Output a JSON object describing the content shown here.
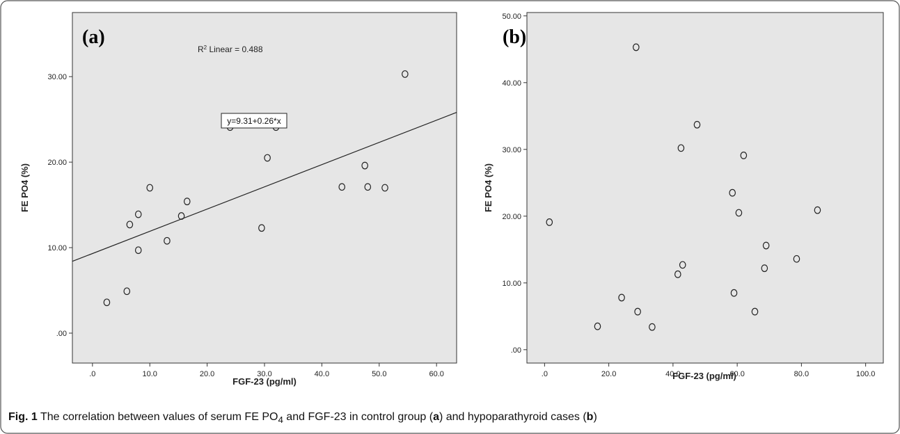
{
  "chart_data": [
    {
      "type": "scatter",
      "panel_label": "(a)",
      "xlabel": "FGF-23 (pg/ml)",
      "ylabel": "FE PO4 (%)",
      "xlim": [
        -3.5,
        63.5
      ],
      "ylim": [
        -3.5,
        37.5
      ],
      "x_ticks": [
        ".0",
        "10.0",
        "20.0",
        "30.0",
        "40.0",
        "50.0",
        "60.0"
      ],
      "y_ticks": [
        ".00",
        "10.00",
        "20.00",
        "30.00"
      ],
      "points": [
        {
          "x": 2.5,
          "y": 3.6
        },
        {
          "x": 6.0,
          "y": 4.9
        },
        {
          "x": 6.5,
          "y": 12.7
        },
        {
          "x": 8.0,
          "y": 9.7
        },
        {
          "x": 8.0,
          "y": 13.9
        },
        {
          "x": 10.0,
          "y": 17.0
        },
        {
          "x": 13.0,
          "y": 10.8
        },
        {
          "x": 15.5,
          "y": 13.7
        },
        {
          "x": 16.5,
          "y": 15.4
        },
        {
          "x": 24.0,
          "y": 24.1
        },
        {
          "x": 29.5,
          "y": 12.3
        },
        {
          "x": 30.5,
          "y": 20.5
        },
        {
          "x": 32.0,
          "y": 24.1
        },
        {
          "x": 43.5,
          "y": 17.1
        },
        {
          "x": 47.5,
          "y": 19.6
        },
        {
          "x": 48.0,
          "y": 17.1
        },
        {
          "x": 51.0,
          "y": 17.0
        },
        {
          "x": 54.5,
          "y": 30.3
        }
      ],
      "fit_line": {
        "intercept": 9.31,
        "slope": 0.26
      },
      "fit_label": "y=9.31+0.26*x",
      "r2_label": "R",
      "r2_sup": "2",
      "r2_text": " Linear = 0.488"
    },
    {
      "type": "scatter",
      "panel_label": "(b)",
      "xlabel": "FGF-23 (pg/ml)",
      "ylabel": "FE PO4 (%)",
      "xlim": [
        -5.5,
        105.5
      ],
      "ylim": [
        -2.0,
        50.5
      ],
      "x_ticks": [
        ".0",
        "20.0",
        "40.0",
        "60.0",
        "80.0",
        "100.0"
      ],
      "y_ticks": [
        ".00",
        "10.00",
        "20.00",
        "30.00",
        "40.00",
        "50.00"
      ],
      "points": [
        {
          "x": 1.5,
          "y": 19.1
        },
        {
          "x": 16.5,
          "y": 3.5
        },
        {
          "x": 24.0,
          "y": 7.8
        },
        {
          "x": 28.5,
          "y": 45.3
        },
        {
          "x": 29.0,
          "y": 5.7
        },
        {
          "x": 33.5,
          "y": 3.4
        },
        {
          "x": 41.5,
          "y": 11.3
        },
        {
          "x": 42.5,
          "y": 30.2
        },
        {
          "x": 43.0,
          "y": 12.7
        },
        {
          "x": 47.5,
          "y": 33.7
        },
        {
          "x": 58.5,
          "y": 23.5
        },
        {
          "x": 59.0,
          "y": 8.5
        },
        {
          "x": 60.5,
          "y": 20.5
        },
        {
          "x": 62.0,
          "y": 29.1
        },
        {
          "x": 65.5,
          "y": 5.7
        },
        {
          "x": 68.5,
          "y": 12.2
        },
        {
          "x": 69.0,
          "y": 15.6
        },
        {
          "x": 78.5,
          "y": 13.6
        },
        {
          "x": 85.0,
          "y": 20.9
        }
      ]
    }
  ],
  "caption": {
    "fig": "Fig. 1",
    "t1": " The correlation between values of serum FE PO",
    "sub": "4",
    "t2": " and FGF-23 in control group (",
    "a": "a",
    "t3": ") and hypoparathyroid cases (",
    "b": "b",
    "t4": ")"
  },
  "colors": {
    "plot_bg": "#e6e6e6",
    "marker_edge": "#222222",
    "line": "#222222"
  }
}
